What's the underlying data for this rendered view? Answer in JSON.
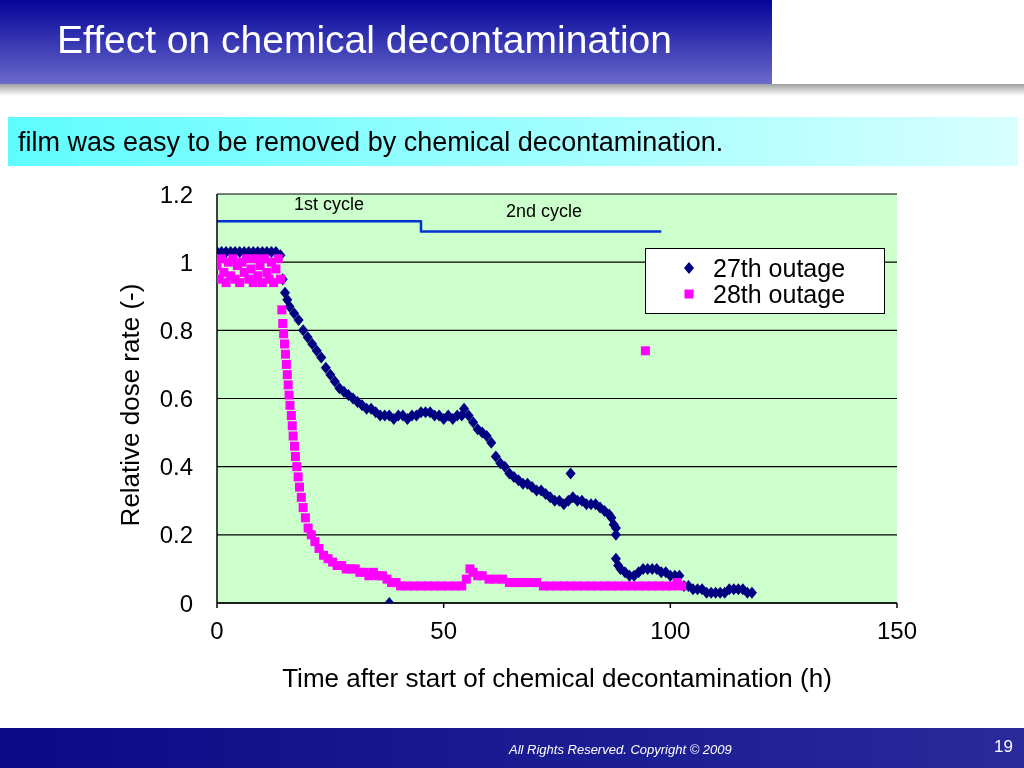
{
  "chart_data": {
    "type": "scatter",
    "title": "Effect on chemical decontamination",
    "subtitle": "film was easy to be removed by chemical decontamination.",
    "xlabel": "Time after start of chemical decontamination (h)",
    "ylabel": "Relative dose rate (-)",
    "xlim": [
      0,
      150
    ],
    "xticks": [
      0,
      50,
      100,
      150
    ],
    "ylim": [
      0,
      1.2
    ],
    "yticks": [
      0,
      0.2,
      0.4,
      0.6,
      0.8,
      1,
      1.2
    ],
    "grid": "y",
    "legend": "top right",
    "annotations": [
      "1st cycle",
      "2nd cycle",
      "All Rights Reserved. Copyright © 2009",
      "19"
    ],
    "series": [
      {
        "type": "line",
        "color": "#0033cc",
        "marker": "none",
        "x": [
          0,
          45,
          45,
          98
        ],
        "values": [
          1.12,
          1.12,
          1.09,
          1.09
        ]
      },
      {
        "name": "27th outage",
        "color": "#000080",
        "marker": "diamond",
        "x": [
          0,
          1,
          2,
          3,
          4,
          5,
          6,
          7,
          8,
          9,
          10,
          11,
          12,
          13,
          14,
          14.5,
          15,
          15.5,
          16,
          17,
          18,
          19,
          20,
          21,
          22,
          23,
          24,
          25,
          26,
          27,
          28,
          29,
          30,
          31,
          32,
          33,
          34,
          35,
          36,
          37,
          38,
          39,
          40,
          41,
          42,
          43,
          44,
          45,
          46,
          47,
          48,
          49,
          50,
          51,
          52,
          53,
          54,
          54.5,
          55.5,
          56.5,
          57.5,
          58.5,
          59.5,
          60.5,
          61.5,
          62.5,
          63.5,
          64.5,
          65.5,
          66.5,
          67.5,
          68.5,
          69.5,
          70.5,
          71.5,
          72.5,
          73.5,
          74.5,
          75.5,
          76.5,
          77.5,
          78,
          78.5,
          79.5,
          80.5,
          81.5,
          82.5,
          83.5,
          84.5,
          85.5,
          86.5,
          87,
          87.5,
          88,
          88,
          88,
          88.5,
          89,
          90,
          91,
          92,
          93,
          94,
          95,
          96,
          97,
          98,
          99,
          100,
          101,
          102,
          103,
          104,
          105,
          106,
          107,
          108,
          109,
          110,
          111,
          112,
          113,
          114,
          115,
          116,
          117,
          118,
          38
        ],
        "values": [
          1.03,
          1.03,
          1.03,
          1.03,
          1.03,
          1.03,
          1.03,
          1.03,
          1.03,
          1.03,
          1.03,
          1.03,
          1.03,
          1.03,
          1.02,
          0.95,
          0.91,
          0.89,
          0.87,
          0.85,
          0.83,
          0.8,
          0.78,
          0.76,
          0.74,
          0.72,
          0.69,
          0.67,
          0.65,
          0.63,
          0.62,
          0.61,
          0.6,
          0.59,
          0.58,
          0.57,
          0.57,
          0.56,
          0.55,
          0.55,
          0.55,
          0.54,
          0.55,
          0.55,
          0.54,
          0.55,
          0.55,
          0.56,
          0.56,
          0.56,
          0.55,
          0.55,
          0.54,
          0.55,
          0.54,
          0.55,
          0.55,
          0.57,
          0.55,
          0.53,
          0.51,
          0.5,
          0.49,
          0.47,
          0.43,
          0.41,
          0.4,
          0.38,
          0.37,
          0.36,
          0.35,
          0.35,
          0.34,
          0.33,
          0.33,
          0.32,
          0.31,
          0.3,
          0.3,
          0.29,
          0.3,
          0.38,
          0.31,
          0.3,
          0.3,
          0.29,
          0.29,
          0.29,
          0.28,
          0.27,
          0.26,
          0.25,
          0.23,
          0.22,
          0.2,
          0.13,
          0.11,
          0.1,
          0.09,
          0.08,
          0.08,
          0.09,
          0.1,
          0.1,
          0.1,
          0.1,
          0.09,
          0.09,
          0.08,
          0.08,
          0.08,
          0.05,
          0.05,
          0.04,
          0.04,
          0.04,
          0.03,
          0.03,
          0.03,
          0.03,
          0.03,
          0.04,
          0.04,
          0.04,
          0.04,
          0.03,
          0.03,
          0.0
        ]
      },
      {
        "name": "28th outage",
        "color": "#ff00ff",
        "marker": "square",
        "x": [
          0,
          0.5,
          1,
          1.5,
          2,
          2.5,
          3,
          3.5,
          4,
          4.5,
          5,
          5.5,
          6,
          6.5,
          7,
          7.5,
          8,
          8.5,
          9,
          9.5,
          10,
          10.5,
          11,
          11.5,
          12,
          12.5,
          13,
          13.5,
          14,
          14.3,
          14.5,
          14.7,
          14.9,
          15.1,
          15.3,
          15.5,
          15.7,
          15.9,
          16.1,
          16.4,
          16.6,
          16.8,
          17.1,
          17.3,
          17.6,
          17.9,
          18.2,
          18.6,
          19,
          19.5,
          20.1,
          20.8,
          21.6,
          22.5,
          23.5,
          24.5,
          25.5,
          26.5,
          27.5,
          28.5,
          29.5,
          30.5,
          31.5,
          32.5,
          33.5,
          34.5,
          35.5,
          36.5,
          37.5,
          38.5,
          39.5,
          40.5,
          42,
          43.5,
          45,
          46.5,
          48,
          49.5,
          51,
          52.5,
          54,
          55,
          55.8,
          56.5,
          57.5,
          58.5,
          60,
          61.5,
          63,
          64.5,
          66,
          67.5,
          69,
          70.5,
          72,
          73.5,
          75,
          76.5,
          78,
          79.5,
          81,
          82.5,
          84,
          85.5,
          87,
          88.5,
          90,
          91.5,
          93,
          94.5,
          96,
          97.5,
          99,
          100.5,
          101.5,
          102.5,
          94.5
        ],
        "values": [
          0.99,
          0.95,
          1.01,
          0.97,
          0.94,
          1.0,
          0.96,
          1.01,
          0.95,
          0.99,
          0.94,
          1.0,
          0.97,
          1.01,
          0.95,
          0.98,
          0.94,
          1.01,
          0.96,
          0.99,
          0.94,
          1.01,
          0.97,
          0.95,
          1.0,
          0.94,
          0.98,
          1.01,
          0.95,
          0.86,
          0.82,
          0.79,
          0.76,
          0.73,
          0.7,
          0.67,
          0.64,
          0.61,
          0.58,
          0.55,
          0.52,
          0.49,
          0.46,
          0.43,
          0.4,
          0.37,
          0.34,
          0.31,
          0.28,
          0.25,
          0.22,
          0.2,
          0.18,
          0.16,
          0.14,
          0.13,
          0.12,
          0.11,
          0.11,
          0.1,
          0.1,
          0.1,
          0.09,
          0.09,
          0.08,
          0.09,
          0.08,
          0.08,
          0.07,
          0.06,
          0.06,
          0.05,
          0.05,
          0.05,
          0.05,
          0.05,
          0.05,
          0.05,
          0.05,
          0.05,
          0.05,
          0.07,
          0.1,
          0.09,
          0.08,
          0.08,
          0.07,
          0.07,
          0.07,
          0.06,
          0.06,
          0.06,
          0.06,
          0.06,
          0.05,
          0.05,
          0.05,
          0.05,
          0.05,
          0.05,
          0.05,
          0.05,
          0.05,
          0.05,
          0.05,
          0.05,
          0.05,
          0.05,
          0.05,
          0.05,
          0.05,
          0.05,
          0.05,
          0.05,
          0.06,
          0.05,
          0.74
        ]
      }
    ]
  }
}
